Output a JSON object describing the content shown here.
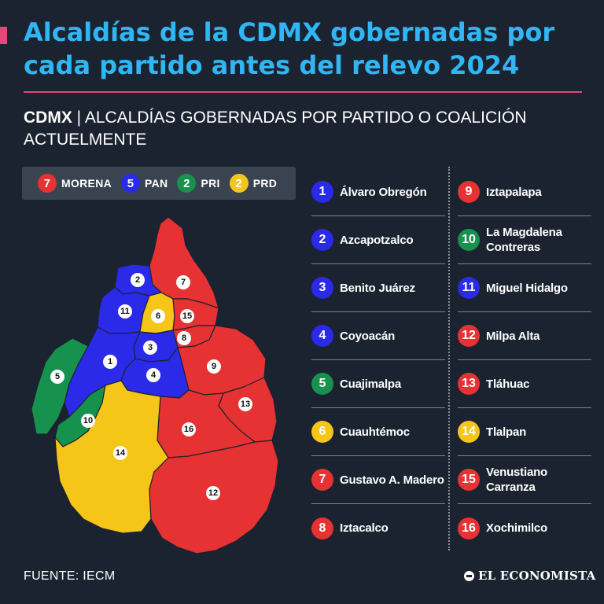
{
  "title": "Alcaldías de la CDMX gobernadas por cada partido antes del relevo 2024",
  "subtitle": {
    "bold": "CDMX",
    "sep": " | ",
    "rest": "ALCALDÍAS GOBERNADAS POR PARTIDO O COALICIÓN ACTUELMENTE"
  },
  "colors": {
    "MORENA": "#e63232",
    "PAN": "#2a2ae8",
    "PRI": "#17924e",
    "PRD": "#f5c518",
    "accent": "#e8457a",
    "title": "#30b6f2"
  },
  "legend": [
    {
      "count": "7",
      "party": "MORENA"
    },
    {
      "count": "5",
      "party": "PAN"
    },
    {
      "count": "2",
      "party": "PRI"
    },
    {
      "count": "2",
      "party": "PRD"
    }
  ],
  "alcaldias": [
    {
      "num": "1",
      "name": "Álvaro Obregón",
      "party": "PAN"
    },
    {
      "num": "2",
      "name": "Azcapotzalco",
      "party": "PAN"
    },
    {
      "num": "3",
      "name": "Benito Juárez",
      "party": "PAN"
    },
    {
      "num": "4",
      "name": "Coyoacán",
      "party": "PAN"
    },
    {
      "num": "5",
      "name": "Cuajimalpa",
      "party": "PRI"
    },
    {
      "num": "6",
      "name": "Cuauhtémoc",
      "party": "PRD"
    },
    {
      "num": "7",
      "name": "Gustavo A. Madero",
      "party": "MORENA"
    },
    {
      "num": "8",
      "name": "Iztacalco",
      "party": "MORENA"
    },
    {
      "num": "9",
      "name": "Iztapalapa",
      "party": "MORENA"
    },
    {
      "num": "10",
      "name": "La Magdalena Contreras",
      "party": "PRI"
    },
    {
      "num": "11",
      "name": "Miguel Hidalgo",
      "party": "PAN"
    },
    {
      "num": "12",
      "name": "Milpa Alta",
      "party": "MORENA"
    },
    {
      "num": "13",
      "name": "Tláhuac",
      "party": "MORENA"
    },
    {
      "num": "14",
      "name": "Tlalpan",
      "party": "PRD"
    },
    {
      "num": "15",
      "name": "Venustiano Carranza",
      "party": "MORENA"
    },
    {
      "num": "16",
      "name": "Xochimilco",
      "party": "MORENA"
    }
  ],
  "source": "FUENTE: IECM",
  "brand": "EL ECONOMISTA"
}
